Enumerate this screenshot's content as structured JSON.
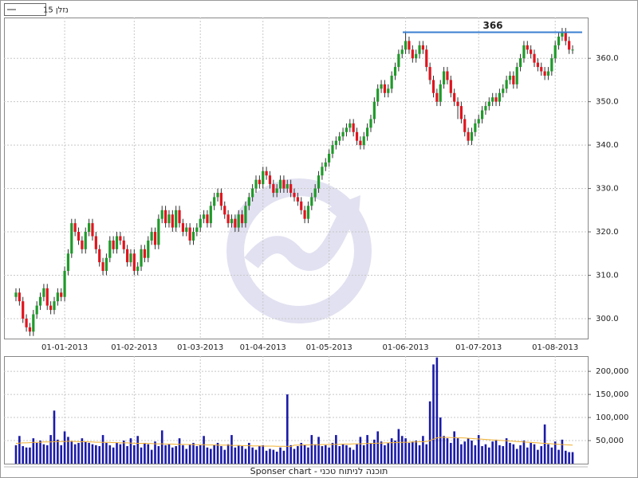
{
  "legend": "נזלן 15",
  "footer": "Sponser chart - תוכנה לניתוח טכני",
  "chart_data": [
    {
      "type": "candlestick",
      "annotation": 366,
      "annotation_color": "#3a7fd0",
      "up_color": "#1f9a2a",
      "down_color": "#e0141e",
      "grid": true,
      "categories": [
        null,
        null,
        null,
        null,
        null,
        null,
        null,
        null,
        null,
        null,
        null,
        null,
        null,
        null,
        "01-01-2013",
        null,
        null,
        null,
        null,
        null,
        null,
        null,
        null,
        null,
        null,
        null,
        null,
        null,
        null,
        null,
        null,
        null,
        null,
        null,
        "01-02-2013",
        null,
        null,
        null,
        null,
        null,
        null,
        null,
        null,
        null,
        null,
        null,
        null,
        null,
        null,
        null,
        null,
        null,
        null,
        "01-03-2013",
        null,
        null,
        null,
        null,
        null,
        null,
        null,
        null,
        null,
        null,
        null,
        null,
        null,
        null,
        null,
        null,
        null,
        "01-04-2013",
        null,
        null,
        null,
        null,
        null,
        null,
        null,
        null,
        null,
        null,
        null,
        null,
        null,
        null,
        null,
        null,
        null,
        null,
        "01-05-2013",
        null,
        null,
        null,
        null,
        null,
        null,
        null,
        null,
        null,
        null,
        null,
        null,
        null,
        null,
        null,
        null,
        null,
        null,
        null,
        null,
        null,
        "01-06-2013",
        null,
        null,
        null,
        null,
        null,
        null,
        null,
        null,
        null,
        null,
        null,
        null,
        null,
        null,
        null,
        null,
        null,
        null,
        null,
        null,
        "01-07-2013",
        null,
        null,
        null,
        null,
        null,
        null,
        null,
        null,
        null,
        null,
        null,
        null,
        null,
        null,
        null,
        null,
        null,
        null,
        null,
        null,
        null,
        "01-08-2013",
        null,
        null,
        null,
        null,
        null
      ],
      "open": [
        305,
        306,
        304,
        300,
        298,
        297,
        301,
        303,
        305,
        307,
        303,
        302,
        304,
        306,
        305,
        311,
        315,
        322,
        320,
        318,
        316,
        320,
        322,
        319,
        316,
        313,
        311,
        314,
        318,
        316,
        319,
        318,
        316,
        313,
        315,
        311,
        312,
        316,
        314,
        318,
        320,
        317,
        323,
        325,
        322,
        324,
        321,
        325,
        322,
        320,
        321,
        318,
        320,
        321,
        323,
        324,
        322,
        326,
        328,
        329,
        326,
        324,
        322,
        323,
        321,
        324,
        322,
        326,
        328,
        330,
        332,
        331,
        334,
        333,
        331,
        329,
        330,
        332,
        330,
        331,
        329,
        328,
        327,
        325,
        323,
        326,
        328,
        330,
        333,
        335,
        336,
        338,
        340,
        341,
        342,
        343,
        344,
        345,
        343,
        341,
        340,
        342,
        344,
        346,
        350,
        353,
        354,
        352,
        353,
        356,
        358,
        361,
        362,
        364,
        362,
        360,
        361,
        363,
        362,
        358,
        355,
        352,
        350,
        354,
        357,
        355,
        352,
        350,
        349,
        346,
        343,
        341,
        343,
        345,
        346,
        348,
        349,
        350,
        351,
        350,
        352,
        353,
        355,
        356,
        354,
        358,
        360,
        363,
        362,
        361,
        359,
        358,
        357,
        356,
        357,
        360,
        363,
        365,
        366,
        364,
        362
      ],
      "high": [
        307,
        307,
        305,
        301,
        299,
        302,
        304,
        306,
        308,
        308,
        304,
        305,
        307,
        307,
        312,
        316,
        323,
        323,
        321,
        319,
        321,
        323,
        323,
        320,
        317,
        314,
        315,
        319,
        319,
        320,
        320,
        319,
        317,
        316,
        316,
        313,
        317,
        317,
        319,
        321,
        321,
        324,
        326,
        326,
        325,
        325,
        326,
        326,
        323,
        322,
        322,
        321,
        322,
        324,
        325,
        325,
        327,
        329,
        330,
        330,
        327,
        325,
        324,
        324,
        325,
        325,
        327,
        329,
        331,
        333,
        333,
        335,
        335,
        334,
        332,
        331,
        333,
        333,
        332,
        332,
        330,
        329,
        328,
        326,
        327,
        329,
        331,
        334,
        336,
        337,
        339,
        341,
        342,
        343,
        344,
        345,
        346,
        346,
        344,
        342,
        343,
        345,
        347,
        351,
        354,
        355,
        355,
        354,
        357,
        359,
        362,
        363,
        366,
        365,
        363,
        362,
        364,
        364,
        363,
        359,
        356,
        353,
        355,
        358,
        358,
        356,
        353,
        351,
        350,
        347,
        344,
        344,
        346,
        347,
        349,
        350,
        351,
        352,
        352,
        353,
        354,
        356,
        357,
        357,
        359,
        361,
        364,
        364,
        363,
        362,
        360,
        359,
        358,
        358,
        361,
        364,
        366,
        367,
        367,
        365,
        363
      ],
      "low": [
        304,
        303,
        299,
        297,
        296,
        296,
        300,
        302,
        304,
        302,
        301,
        301,
        303,
        304,
        304,
        310,
        314,
        319,
        317,
        315,
        315,
        319,
        318,
        315,
        312,
        310,
        310,
        313,
        315,
        315,
        317,
        315,
        312,
        312,
        310,
        310,
        311,
        313,
        313,
        317,
        316,
        316,
        322,
        321,
        321,
        320,
        320,
        321,
        319,
        319,
        317,
        317,
        319,
        320,
        322,
        321,
        321,
        325,
        327,
        325,
        323,
        321,
        321,
        320,
        320,
        321,
        321,
        325,
        327,
        329,
        330,
        330,
        332,
        330,
        328,
        328,
        329,
        329,
        329,
        328,
        327,
        326,
        324,
        322,
        322,
        325,
        327,
        329,
        332,
        334,
        335,
        337,
        339,
        340,
        341,
        342,
        343,
        342,
        340,
        339,
        339,
        341,
        343,
        345,
        349,
        352,
        351,
        351,
        352,
        355,
        357,
        360,
        361,
        361,
        359,
        359,
        360,
        361,
        357,
        354,
        351,
        349,
        349,
        353,
        354,
        351,
        349,
        346,
        345,
        342,
        340,
        340,
        342,
        344,
        345,
        347,
        348,
        349,
        349,
        349,
        351,
        352,
        354,
        353,
        353,
        357,
        359,
        361,
        360,
        358,
        357,
        356,
        355,
        355,
        356,
        359,
        362,
        364,
        363,
        361,
        361
      ],
      "close": [
        306,
        304,
        300,
        298,
        297,
        301,
        303,
        305,
        307,
        303,
        302,
        304,
        306,
        305,
        311,
        315,
        322,
        320,
        318,
        316,
        320,
        322,
        319,
        316,
        313,
        311,
        314,
        318,
        316,
        319,
        318,
        316,
        313,
        315,
        311,
        312,
        316,
        314,
        318,
        320,
        317,
        323,
        325,
        322,
        324,
        321,
        325,
        322,
        320,
        321,
        318,
        320,
        321,
        323,
        324,
        322,
        326,
        328,
        329,
        326,
        324,
        322,
        323,
        321,
        324,
        322,
        326,
        328,
        330,
        332,
        331,
        334,
        333,
        331,
        329,
        330,
        332,
        330,
        331,
        329,
        328,
        327,
        325,
        323,
        326,
        328,
        330,
        333,
        335,
        336,
        338,
        340,
        341,
        342,
        343,
        344,
        345,
        343,
        341,
        340,
        342,
        344,
        346,
        350,
        353,
        354,
        352,
        353,
        356,
        358,
        361,
        362,
        364,
        362,
        360,
        361,
        363,
        362,
        358,
        355,
        352,
        350,
        354,
        357,
        355,
        352,
        350,
        349,
        346,
        343,
        341,
        343,
        345,
        346,
        348,
        349,
        350,
        351,
        350,
        352,
        353,
        355,
        356,
        354,
        358,
        360,
        363,
        362,
        361,
        359,
        358,
        357,
        356,
        357,
        360,
        363,
        365,
        366,
        364,
        362,
        362
      ],
      "ylim": [
        295.4,
        369.4
      ],
      "yticks": [
        {
          "value": 300,
          "label": "300.0"
        },
        {
          "value": 310,
          "label": "310.0"
        },
        {
          "value": 320,
          "label": "320.0"
        },
        {
          "value": 330,
          "label": "330.0"
        },
        {
          "value": 340,
          "label": "340.0"
        },
        {
          "value": 350,
          "label": "350.0"
        },
        {
          "value": 360,
          "label": "360.0"
        }
      ]
    },
    {
      "type": "bar",
      "color": "#1a1aa8",
      "ma_color": "#f0b030",
      "grid": true,
      "values": [
        40000,
        60000,
        38000,
        35000,
        35000,
        55000,
        45000,
        50000,
        42000,
        40000,
        62000,
        115000,
        52000,
        40000,
        70000,
        58000,
        48000,
        42000,
        45000,
        55000,
        48000,
        45000,
        42000,
        40000,
        38000,
        62000,
        45000,
        40000,
        35000,
        45000,
        42000,
        50000,
        38000,
        55000,
        40000,
        60000,
        35000,
        45000,
        42000,
        30000,
        48000,
        38000,
        72000,
        40000,
        42000,
        35000,
        38000,
        55000,
        40000,
        32000,
        42000,
        45000,
        38000,
        40000,
        60000,
        35000,
        32000,
        40000,
        45000,
        38000,
        30000,
        42000,
        62000,
        35000,
        40000,
        38000,
        32000,
        45000,
        35000,
        30000,
        38000,
        40000,
        28000,
        32000,
        30000,
        26000,
        35000,
        28000,
        150000,
        40000,
        32000,
        38000,
        45000,
        40000,
        35000,
        62000,
        42000,
        58000,
        38000,
        40000,
        35000,
        45000,
        62000,
        38000,
        42000,
        40000,
        35000,
        30000,
        42000,
        58000,
        40000,
        62000,
        45000,
        52000,
        70000,
        48000,
        40000,
        45000,
        55000,
        50000,
        75000,
        60000,
        55000,
        45000,
        48000,
        50000,
        40000,
        60000,
        42000,
        135000,
        215000,
        230000,
        100000,
        60000,
        55000,
        45000,
        70000,
        55000,
        42000,
        48000,
        55000,
        50000,
        40000,
        62000,
        38000,
        42000,
        35000,
        48000,
        52000,
        40000,
        38000,
        55000,
        45000,
        42000,
        32000,
        40000,
        50000,
        35000,
        45000,
        42000,
        30000,
        38000,
        85000,
        42000,
        35000,
        48000,
        30000,
        52000,
        28000,
        25000,
        25000
      ],
      "ma": [
        44000,
        44500,
        45000,
        45000,
        45500,
        46000,
        46000,
        46500,
        47000,
        47000,
        47000,
        47500,
        48000,
        48000,
        48000,
        48500,
        48500,
        48000,
        48000,
        47500,
        47500,
        47000,
        47000,
        46500,
        46500,
        46000,
        46000,
        46000,
        45500,
        45500,
        45000,
        45000,
        45000,
        44500,
        44500,
        44000,
        44000,
        44000,
        43500,
        43500,
        43000,
        43000,
        43000,
        42500,
        42500,
        42500,
        42000,
        42000,
        42000,
        41500,
        41500,
        41500,
        41000,
        41000,
        41000,
        40500,
        40500,
        40500,
        40000,
        40000,
        40000,
        40000,
        39500,
        39500,
        39500,
        39000,
        39000,
        39000,
        38500,
        38500,
        38500,
        38000,
        38000,
        38000,
        38000,
        37500,
        37500,
        37500,
        37500,
        37000,
        40000,
        40000,
        40500,
        40500,
        40500,
        41000,
        41000,
        41000,
        41500,
        41500,
        41500,
        42000,
        42000,
        42000,
        42500,
        42500,
        42500,
        43000,
        43000,
        43000,
        43500,
        43500,
        44000,
        44000,
        44500,
        44500,
        45000,
        45000,
        45500,
        45500,
        46000,
        46000,
        46500,
        46500,
        47000,
        47000,
        47500,
        47500,
        48000,
        50000,
        53000,
        56000,
        57000,
        57000,
        57000,
        56500,
        56500,
        56000,
        56000,
        55500,
        55000,
        54500,
        54000,
        53500,
        53000,
        52500,
        52000,
        51500,
        51000,
        50500,
        50000,
        49500,
        49000,
        48500,
        48000,
        47500,
        47000,
        46500,
        46000,
        45500,
        45000,
        44500,
        44000,
        43500,
        43000,
        42500,
        42000,
        41500,
        41000,
        40500,
        40000
      ],
      "ylim": [
        0,
        233000
      ],
      "yticks": [
        {
          "value": 50000,
          "label": "50,000"
        },
        {
          "value": 100000,
          "label": "100,000"
        },
        {
          "value": 150000,
          "label": "150,000"
        },
        {
          "value": 200000,
          "label": "200,000"
        }
      ]
    }
  ]
}
